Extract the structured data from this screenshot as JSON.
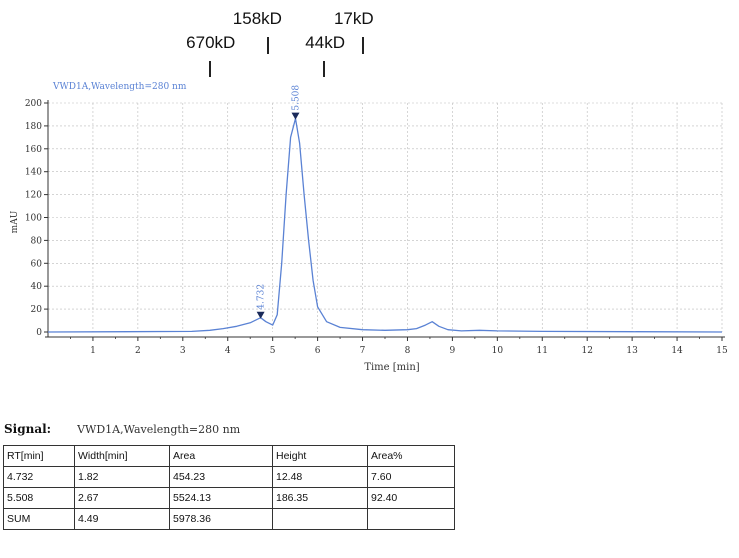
{
  "markers": [
    {
      "label": "670kD",
      "time": 3.6,
      "row": "lower"
    },
    {
      "label": "158kD",
      "time": 4.9,
      "row": "upper"
    },
    {
      "label": "44kD",
      "time": 6.15,
      "row": "lower"
    },
    {
      "label": "17kD",
      "time": 7.0,
      "row": "upper"
    }
  ],
  "signal": {
    "label": "Signal:",
    "value": "VWD1A,Wavelength=280 nm"
  },
  "table": {
    "headers": [
      "RT[min]",
      "Width[min]",
      "Area",
      "Height",
      "Area%"
    ],
    "rows": [
      [
        "4.732",
        "1.82",
        "454.23",
        "12.48",
        "7.60"
      ],
      [
        "5.508",
        "2.67",
        "5524.13",
        "186.35",
        "92.40"
      ],
      [
        "SUM",
        "4.49",
        "5978.36",
        "",
        ""
      ]
    ]
  },
  "chart_data": {
    "type": "line",
    "title": "VWD1A,Wavelength=280 nm",
    "xlabel": "Time [min]",
    "ylabel": "mAU",
    "xlim": [
      0,
      15
    ],
    "ylim": [
      0,
      200
    ],
    "xticks": [
      1,
      2,
      3,
      4,
      5,
      6,
      7,
      8,
      9,
      10,
      11,
      12,
      13,
      14,
      15
    ],
    "yticks": [
      0,
      20,
      40,
      60,
      80,
      100,
      120,
      140,
      160,
      180,
      200
    ],
    "grid": true,
    "color": "#5a82d4",
    "series": [
      {
        "x": [
          0,
          3.2,
          3.6,
          3.9,
          4.2,
          4.5,
          4.732,
          4.85,
          5.0,
          5.1,
          5.2,
          5.3,
          5.4,
          5.508,
          5.6,
          5.7,
          5.8,
          5.9,
          6.0,
          6.2,
          6.5,
          7.0,
          7.5,
          8.0,
          8.2,
          8.4,
          8.55,
          8.7,
          8.9,
          9.2,
          9.6,
          10.0,
          11.0,
          13.0,
          15.0
        ],
        "y": [
          0,
          0.5,
          1.5,
          3,
          5,
          8,
          12.48,
          9,
          6,
          15,
          60,
          120,
          170,
          186.35,
          165,
          120,
          80,
          45,
          22,
          9,
          4,
          2,
          1.5,
          2,
          3,
          6,
          9,
          5,
          2,
          1,
          1.5,
          1,
          0.5,
          0.3,
          0
        ]
      }
    ],
    "peaks": [
      {
        "time": 4.732,
        "height": 12.48,
        "label": "4.732"
      },
      {
        "time": 5.508,
        "height": 186.35,
        "label": "5.508"
      }
    ]
  }
}
